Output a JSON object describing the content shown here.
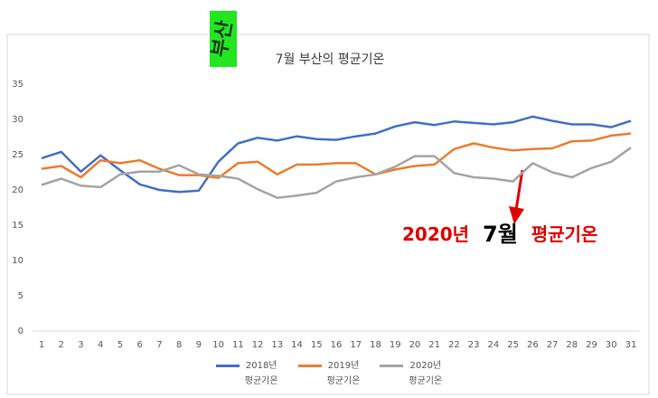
{
  "chart_data": {
    "type": "line",
    "title": "7월 부산의 평균기온",
    "badge": "부산",
    "annotation": {
      "parts": [
        "2020년",
        "7월",
        "평균기온"
      ]
    },
    "categories": [
      "1",
      "2",
      "3",
      "4",
      "5",
      "6",
      "7",
      "8",
      "9",
      "10",
      "11",
      "12",
      "13",
      "14",
      "15",
      "16",
      "17",
      "18",
      "19",
      "20",
      "21",
      "22",
      "23",
      "24",
      "25",
      "26",
      "27",
      "28",
      "29",
      "30",
      "31"
    ],
    "series": [
      {
        "name": "2018년\n평균기온",
        "color": "#4472c4",
        "values": [
          24.5,
          25.4,
          22.6,
          24.9,
          22.8,
          20.8,
          20.0,
          19.7,
          19.9,
          24.0,
          26.6,
          27.4,
          27.0,
          27.6,
          27.2,
          27.1,
          27.6,
          28.0,
          29.0,
          29.6,
          29.2,
          29.7,
          29.5,
          29.3,
          29.6,
          30.4,
          29.8,
          29.3,
          29.3,
          28.9,
          29.8
        ]
      },
      {
        "name": "2019년\n평균기온",
        "color": "#ed7d31",
        "values": [
          23.0,
          23.4,
          21.8,
          24.2,
          23.8,
          24.2,
          23.0,
          22.1,
          22.1,
          21.7,
          23.8,
          24.0,
          22.2,
          23.6,
          23.6,
          23.8,
          23.8,
          22.2,
          22.9,
          23.4,
          23.6,
          25.8,
          26.6,
          26.0,
          25.6,
          25.8,
          25.9,
          26.9,
          27.0,
          27.7,
          28.0
        ]
      },
      {
        "name": "2020년\n평균기온",
        "color": "#a5a5a5",
        "values": [
          20.7,
          21.6,
          20.6,
          20.4,
          22.2,
          22.6,
          22.6,
          23.5,
          22.2,
          22.0,
          21.6,
          20.1,
          18.9,
          19.2,
          19.6,
          21.2,
          21.8,
          22.2,
          23.3,
          24.8,
          24.8,
          22.4,
          21.8,
          21.6,
          21.2,
          23.8,
          22.5,
          21.8,
          23.1,
          24.0,
          26.0
        ]
      }
    ],
    "ylim": [
      0,
      35
    ],
    "yticks": [
      0,
      5,
      10,
      15,
      20,
      25,
      30,
      35
    ],
    "grid": false
  }
}
